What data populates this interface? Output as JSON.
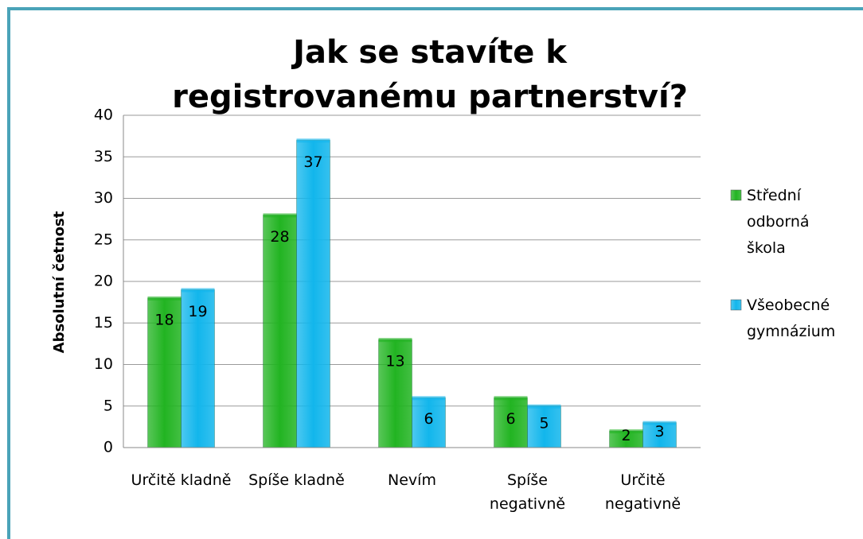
{
  "chart_data": {
    "type": "bar",
    "title": "Jak se stavíte k registrovanému partnerství?",
    "y_label": "Absolutní četnost",
    "categories": [
      "Určitě kladně",
      "Spíše kladně",
      "Nevím",
      "Spíše negativně",
      "Určitě negativně"
    ],
    "series": [
      {
        "name": "Střední odborná škola",
        "color": "#22b422",
        "values": [
          18,
          28,
          13,
          6,
          2
        ]
      },
      {
        "name": "Všeobecné gymnázium",
        "color": "#12b6ec",
        "values": [
          19,
          37,
          6,
          5,
          3
        ]
      }
    ],
    "ylim": [
      0,
      40
    ],
    "yticks": [
      0,
      5,
      10,
      15,
      20,
      25,
      30,
      35,
      40
    ],
    "grid": true,
    "legend": "right"
  }
}
